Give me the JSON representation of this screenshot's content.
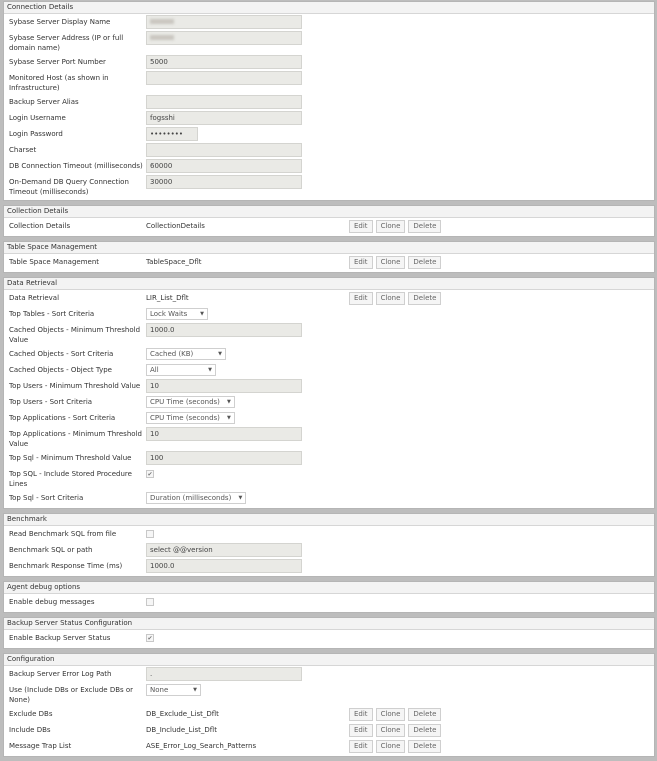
{
  "sections": [
    {
      "title": "Connection Details",
      "rows": [
        {
          "label": "Sybase Server Display Name",
          "type": "input",
          "value": "",
          "blurred": true
        },
        {
          "label": "Sybase Server Address (IP or full domain name)",
          "type": "input",
          "value": "",
          "blurred": true
        },
        {
          "label": "Sybase Server Port Number",
          "type": "input",
          "value": "5000"
        },
        {
          "label": "Monitored Host (as shown in Infrastructure)",
          "type": "input",
          "value": ""
        },
        {
          "label": "Backup Server Alias",
          "type": "input",
          "value": ""
        },
        {
          "label": "Login Username",
          "type": "input",
          "value": "fogsshi"
        },
        {
          "label": "Login Password",
          "type": "password",
          "value": "••••••••"
        },
        {
          "label": "Charset",
          "type": "input",
          "value": ""
        },
        {
          "label": "DB Connection Timeout (milliseconds)",
          "type": "input",
          "value": "60000"
        },
        {
          "label": "On-Demand DB Query Connection Timeout (milliseconds)",
          "type": "input",
          "value": "30000"
        }
      ]
    },
    {
      "title": "Collection Details",
      "rows": [
        {
          "label": "Collection Details",
          "type": "list",
          "value": "CollectionDetails"
        }
      ]
    },
    {
      "title": "Table Space Management",
      "rows": [
        {
          "label": "Table Space Management",
          "type": "list",
          "value": "TableSpace_Dflt"
        }
      ]
    },
    {
      "title": "Data Retrieval",
      "rows": [
        {
          "label": "Data Retrieval",
          "type": "list",
          "value": "LIR_List_Dflt"
        },
        {
          "label": "Top Tables - Sort Criteria",
          "type": "select",
          "value": "Lock Waits",
          "w": 62
        },
        {
          "label": "Cached Objects - Minimum Threshold Value",
          "type": "input",
          "value": "1000.0"
        },
        {
          "label": "Cached Objects - Sort Criteria",
          "type": "select",
          "value": "Cached (KB)",
          "w": 80
        },
        {
          "label": "Cached Objects - Object Type",
          "type": "select",
          "value": "All",
          "w": 70
        },
        {
          "label": "Top Users - Minimum Threshold Value",
          "type": "input",
          "value": "10"
        },
        {
          "label": "Top Users - Sort Criteria",
          "type": "select",
          "value": "CPU Time (seconds)",
          "w": 80
        },
        {
          "label": "Top Applications - Sort Criteria",
          "type": "select",
          "value": "CPU Time (seconds)",
          "w": 80
        },
        {
          "label": "Top Applications - Minimum Threshold Value",
          "type": "input",
          "value": "10"
        },
        {
          "label": "Top Sql - Minimum Threshold Value",
          "type": "input",
          "value": "100"
        },
        {
          "label": "Top SQL - Include Stored Procedure Lines",
          "type": "checkbox",
          "checked": true
        },
        {
          "label": "Top Sql - Sort Criteria",
          "type": "select",
          "value": "Duration (milliseconds)",
          "w": 92
        }
      ]
    },
    {
      "title": "Benchmark",
      "rows": [
        {
          "label": "Read Benchmark SQL from file",
          "type": "checkbox",
          "checked": false
        },
        {
          "label": "Benchmark SQL or path",
          "type": "input",
          "value": "select @@version"
        },
        {
          "label": "Benchmark Response Time (ms)",
          "type": "input",
          "value": "1000.0"
        }
      ]
    },
    {
      "title": "Agent debug options",
      "rows": [
        {
          "label": "Enable debug messages",
          "type": "checkbox",
          "checked": false
        }
      ]
    },
    {
      "title": "Backup Server Status Configuration",
      "rows": [
        {
          "label": "Enable Backup Server Status",
          "type": "checkbox",
          "checked": true
        }
      ]
    },
    {
      "title": "Configuration",
      "rows": [
        {
          "label": "Backup Server Error Log Path",
          "type": "input",
          "value": "."
        },
        {
          "label": "Use (Include DBs or Exclude DBs or None)",
          "type": "select",
          "value": "None",
          "w": 55
        },
        {
          "label": "Exclude DBs",
          "type": "list",
          "value": "DB_Exclude_List_Dflt"
        },
        {
          "label": "Include DBs",
          "type": "list",
          "value": "DB_Include_List_Dflt"
        },
        {
          "label": "Message Trap List",
          "type": "list",
          "value": "ASE_Error_Log_Search_Patterns"
        }
      ]
    }
  ],
  "buttons": {
    "edit": "Edit",
    "clone": "Clone",
    "delete": "Delete"
  },
  "icons": {
    "dropdown": "▼",
    "check": "✔"
  }
}
